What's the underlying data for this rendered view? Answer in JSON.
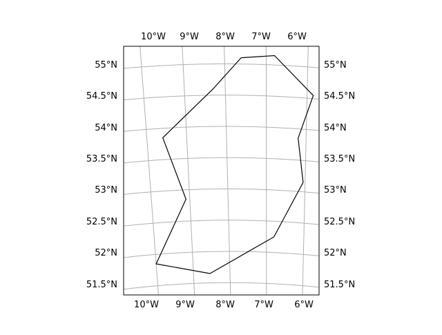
{
  "map": {
    "colors": {
      "background": "#ffffff",
      "frame": "#000000",
      "gridline": "#b0b0b0",
      "outline": "#000000"
    },
    "longitude_labels": [
      "10°W",
      "9°W",
      "8°W",
      "7°W",
      "6°W"
    ],
    "latitude_labels": [
      "55°N",
      "54.5°N",
      "54°N",
      "53.5°N",
      "53°N",
      "52.5°N",
      "52°N",
      "51.5°N"
    ],
    "gridlines": {
      "meridians_deg": [
        -10,
        -9,
        -8,
        -7,
        -6
      ],
      "parallels_deg": [
        55,
        54.5,
        54,
        53.5,
        53,
        52.5,
        52,
        51.5
      ]
    },
    "outline_lonlat": [
      [
        -7.6,
        55.1
      ],
      [
        -6.8,
        55.15
      ],
      [
        -5.85,
        54.55
      ],
      [
        -6.2,
        53.85
      ],
      [
        -6.05,
        53.15
      ],
      [
        -6.8,
        52.25
      ],
      [
        -8.55,
        51.65
      ],
      [
        -10.0,
        51.85
      ],
      [
        -9.1,
        52.85
      ],
      [
        -9.6,
        53.85
      ],
      [
        -8.3,
        54.6
      ],
      [
        -7.6,
        55.1
      ]
    ]
  }
}
